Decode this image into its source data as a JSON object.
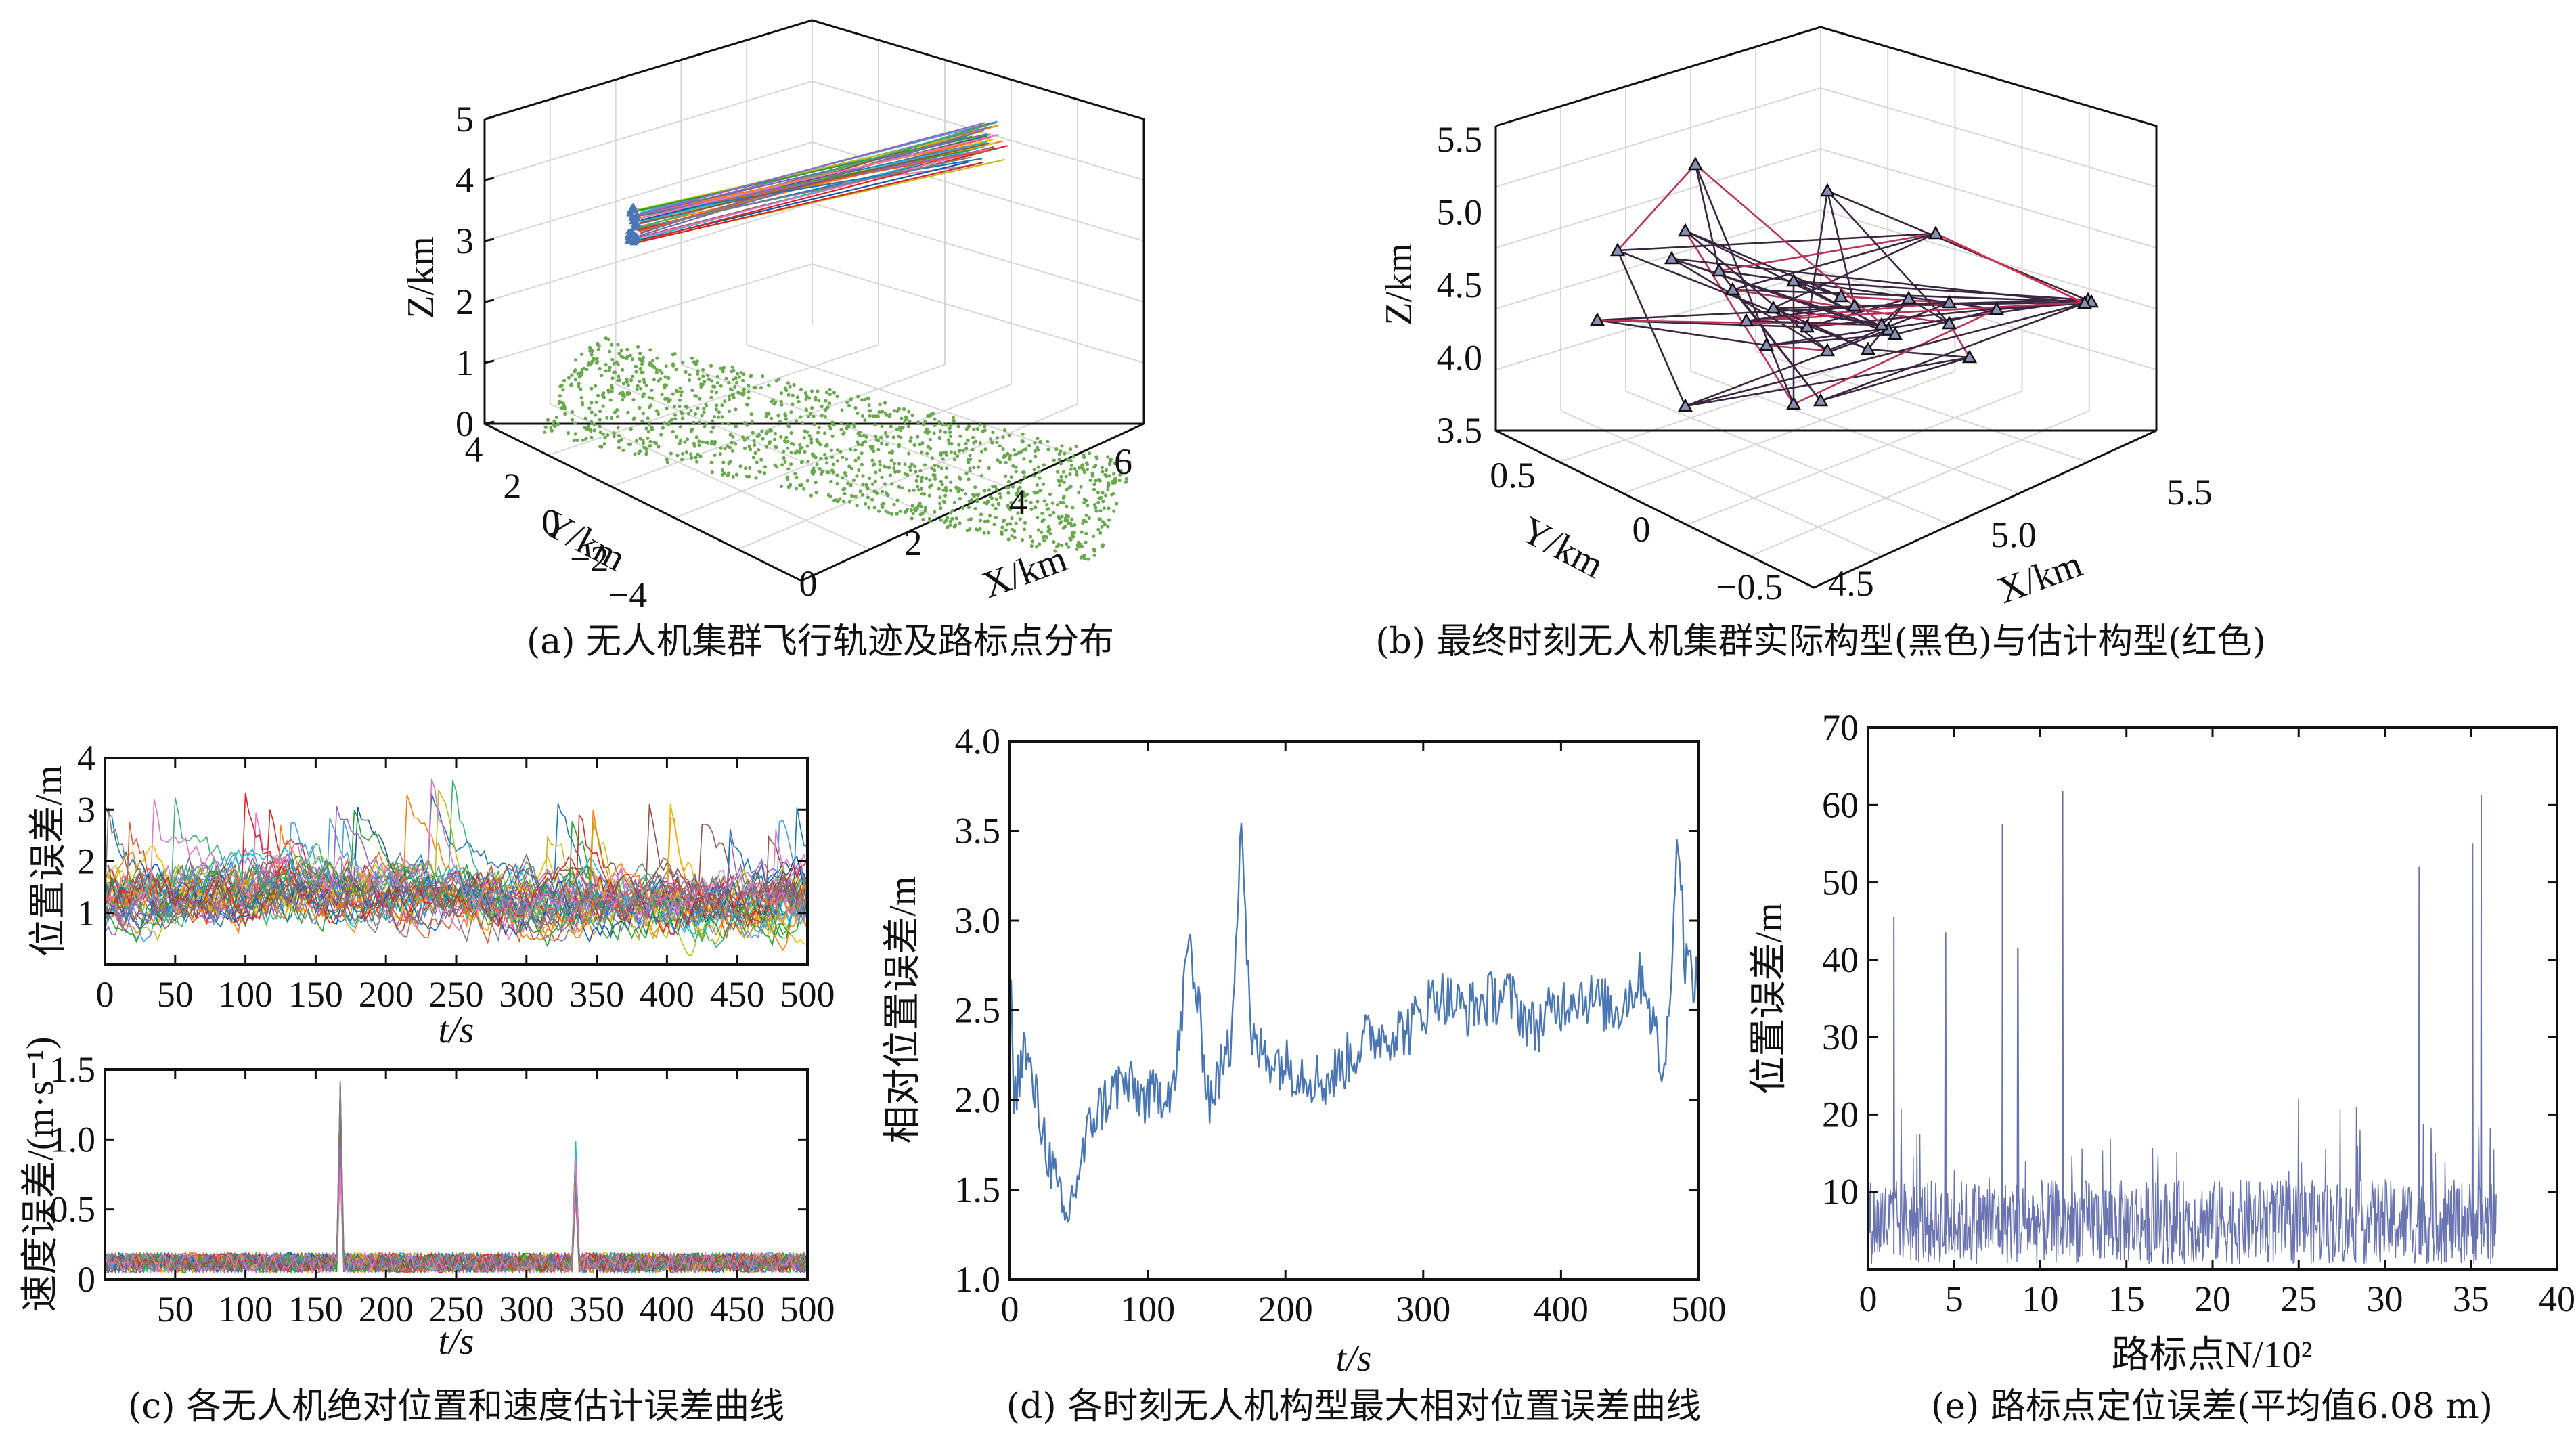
{
  "chart_data": [
    {
      "id": "a",
      "type": "line",
      "caption": "(a) 无人机集群飞行轨迹及路标点分布",
      "xlabel": "X/km",
      "ylabel": "Y/km",
      "zlabel": "Z/km",
      "xticks": [
        "0",
        "2",
        "4",
        "6"
      ],
      "yticks": [
        "4",
        "2",
        "0",
        "−2",
        "−4"
      ],
      "zticks": [
        "0",
        "1",
        "2",
        "3",
        "4",
        "5"
      ],
      "xlim": [
        0,
        6
      ],
      "ylim": [
        -4,
        4
      ],
      "zlim": [
        0,
        5
      ],
      "series": [
        {
          "name": "无人机飞行轨迹",
          "start": {
            "x": 0.3,
            "y": 0.3,
            "z": 3.3
          },
          "end": {
            "x": 5.3,
            "y": 0.3,
            "z": 4.7
          },
          "count": 40
        },
        {
          "name": "路标点",
          "x_range": [
            0,
            6
          ],
          "y_range": [
            -4,
            4
          ],
          "z": 0
        }
      ],
      "colors": {
        "landmarks": "#6aa84f",
        "start_markers": "#4a77b4"
      }
    },
    {
      "id": "b",
      "type": "line",
      "caption": "(b) 最终时刻无人机集群实际构型(黑色)与估计构型(红色)",
      "xlabel": "X/km",
      "ylabel": "Y/km",
      "zlabel": "Z/km",
      "xticks": [
        "4.5",
        "5.0",
        "5.5"
      ],
      "yticks": [
        "0.5",
        "0",
        "−0.5"
      ],
      "zticks": [
        "3.5",
        "4.0",
        "4.5",
        "5.0",
        "5.5"
      ],
      "xlim": [
        4.4,
        5.6
      ],
      "ylim": [
        -0.6,
        0.6
      ],
      "zlim": [
        3.5,
        5.5
      ],
      "series": [
        {
          "name": "实际构型",
          "color": "#222222"
        },
        {
          "name": "估计构型",
          "color": "#d0314f"
        }
      ]
    },
    {
      "id": "c1",
      "type": "line",
      "caption": "(c) 各无人机绝对位置和速度估计误差曲线",
      "xlabel": "t/s",
      "ylabel": "位置误差/m",
      "xlim": [
        0,
        500
      ],
      "ylim": [
        0,
        4
      ],
      "xticks": [
        "0",
        "50",
        "100",
        "150",
        "200",
        "250",
        "300",
        "350",
        "400",
        "450",
        "500"
      ],
      "yticks": [
        "1",
        "2",
        "3",
        "4"
      ],
      "series_count": 40,
      "mean": 1.3,
      "max": 3.8
    },
    {
      "id": "c2",
      "type": "line",
      "xlabel": "t/s",
      "ylabel": "速度误差/(m·s⁻¹)",
      "xlim": [
        0,
        500
      ],
      "ylim": [
        0,
        1.5
      ],
      "xticks": [
        "50",
        "100",
        "150",
        "200",
        "250",
        "300",
        "350",
        "400",
        "450",
        "500"
      ],
      "yticks": [
        "0",
        "0.5",
        "1.0",
        "1.5"
      ],
      "series_count": 40,
      "mean": 0.12,
      "spikes": [
        {
          "t": 167,
          "value": 1.45
        },
        {
          "t": 335,
          "value": 1.0
        }
      ]
    },
    {
      "id": "d",
      "type": "line",
      "caption": "(d) 各时刻无人机构型最大相对位置误差曲线",
      "xlabel": "t/s",
      "ylabel": "相对位置误差/m",
      "xlim": [
        0,
        500
      ],
      "ylim": [
        1.0,
        4.0
      ],
      "xticks": [
        "0",
        "100",
        "200",
        "300",
        "400",
        "500"
      ],
      "yticks": [
        "1.0",
        "1.5",
        "2.0",
        "2.5",
        "3.0",
        "3.5",
        "4.0"
      ],
      "series": [
        {
          "name": "最大相对位置误差",
          "color": "#4a77b4",
          "keypoints": [
            [
              0,
              2.8
            ],
            [
              3,
              2.0
            ],
            [
              10,
              2.3
            ],
            [
              25,
              1.8
            ],
            [
              40,
              1.3
            ],
            [
              60,
              1.9
            ],
            [
              80,
              2.1
            ],
            [
              100,
              2.0
            ],
            [
              120,
              2.1
            ],
            [
              130,
              2.9
            ],
            [
              145,
              2.0
            ],
            [
              160,
              2.3
            ],
            [
              168,
              3.6
            ],
            [
              175,
              2.3
            ],
            [
              200,
              2.2
            ],
            [
              230,
              2.1
            ],
            [
              260,
              2.35
            ],
            [
              290,
              2.4
            ],
            [
              310,
              2.6
            ],
            [
              330,
              2.5
            ],
            [
              360,
              2.6
            ],
            [
              380,
              2.4
            ],
            [
              410,
              2.6
            ],
            [
              440,
              2.5
            ],
            [
              460,
              2.7
            ],
            [
              475,
              2.1
            ],
            [
              485,
              3.5
            ],
            [
              490,
              2.8
            ],
            [
              500,
              2.6
            ]
          ]
        }
      ]
    },
    {
      "id": "e",
      "type": "line",
      "caption": "(e) 路标点定位误差(平均值6.08 m)",
      "xlabel": "路标点N/10²",
      "ylabel": "位置误差/m",
      "xlim": [
        0,
        40
      ],
      "ylim": [
        0,
        70
      ],
      "xticks": [
        "0",
        "5",
        "10",
        "15",
        "20",
        "25",
        "30",
        "35",
        "40"
      ],
      "yticks": [
        "10",
        "20",
        "30",
        "40",
        "50",
        "60",
        "70"
      ],
      "mean": 6.08,
      "spikes": [
        {
          "n": 1.5,
          "value": 45.5
        },
        {
          "n": 4.5,
          "value": 43.5
        },
        {
          "n": 7.8,
          "value": 57.5
        },
        {
          "n": 8.7,
          "value": 41.5
        },
        {
          "n": 11.3,
          "value": 61.8
        },
        {
          "n": 32.0,
          "value": 52.0
        },
        {
          "n": 35.1,
          "value": 55.0
        },
        {
          "n": 35.6,
          "value": 61.3
        }
      ],
      "color": "#6a74b0"
    }
  ]
}
